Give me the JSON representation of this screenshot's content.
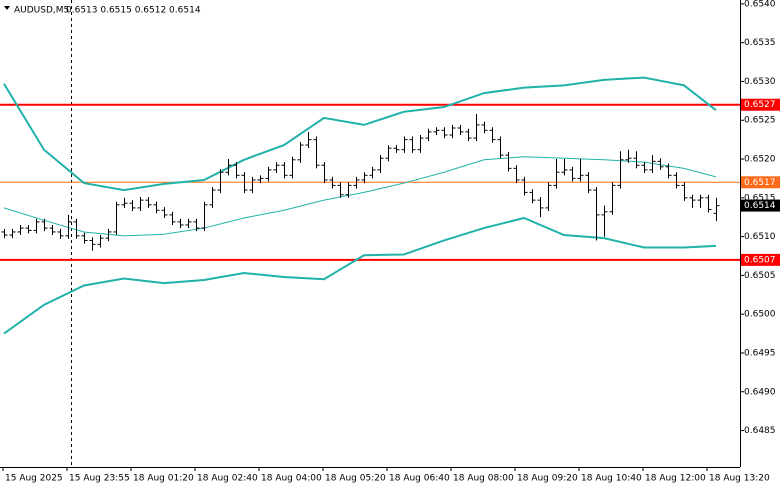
{
  "chart_data": {
    "type": "ohlc",
    "title": "AUDUSD,M5",
    "header_values": "0.6513 0.6515 0.6512 0.6514",
    "categories": [
      "15 Aug 2025",
      null,
      null,
      null,
      null,
      null,
      null,
      null,
      "15 Aug 23:55",
      null,
      null,
      null,
      null,
      null,
      null,
      null,
      "18 Aug 01:20",
      null,
      null,
      null,
      null,
      null,
      null,
      null,
      "18 Aug 02:40",
      null,
      null,
      null,
      null,
      null,
      null,
      null,
      "18 Aug 04:00",
      null,
      null,
      null,
      null,
      null,
      null,
      null,
      "18 Aug 05:20",
      null,
      null,
      null,
      null,
      null,
      null,
      null,
      "18 Aug 06:40",
      null,
      null,
      null,
      null,
      null,
      null,
      null,
      "18 Aug 08:00",
      null,
      null,
      null,
      null,
      null,
      null,
      null,
      "18 Aug 09:20",
      null,
      null,
      null,
      null,
      null,
      null,
      null,
      "18 Aug 10:40",
      null,
      null,
      null,
      null,
      null,
      null,
      null,
      "18 Aug 12:00",
      null,
      null,
      null,
      null,
      null,
      null,
      null,
      "18 Aug 13:20",
      null
    ],
    "open": [
      0.65106,
      0.65102,
      0.65106,
      0.65111,
      0.65108,
      0.65119,
      0.65111,
      0.65106,
      0.65101,
      0.65119,
      0.65101,
      0.65095,
      0.6509,
      0.65098,
      0.65106,
      0.65141,
      0.65143,
      0.65137,
      0.65147,
      0.65141,
      0.65134,
      0.65128,
      0.65119,
      0.65115,
      0.65119,
      0.65111,
      0.65141,
      0.6516,
      0.65183,
      0.65192,
      0.65179,
      0.6516,
      0.65173,
      0.65175,
      0.65186,
      0.65192,
      0.65179,
      0.65199,
      0.65218,
      0.65225,
      0.65192,
      0.65173,
      0.65166,
      0.65154,
      0.65166,
      0.65173,
      0.65179,
      0.65186,
      0.65201,
      0.65214,
      0.65212,
      0.65225,
      0.65212,
      0.65227,
      0.65235,
      0.65237,
      0.65231,
      0.6524,
      0.65235,
      0.65227,
      0.65244,
      0.65237,
      0.65225,
      0.65205,
      0.65188,
      0.65173,
      0.65157,
      0.65147,
      0.65137,
      0.65166,
      0.65183,
      0.65186,
      0.65175,
      0.65179,
      0.6516,
      0.65128,
      0.65132,
      0.65166,
      0.65199,
      0.65201,
      0.65192,
      0.65186,
      0.65197,
      0.6519,
      0.65179,
      0.65166,
      0.6515,
      0.65147,
      0.6515,
      0.6513
    ],
    "high": [
      0.6511,
      0.6511,
      0.65115,
      0.65115,
      0.65123,
      0.65123,
      0.65115,
      0.6511,
      0.65128,
      0.65123,
      0.65105,
      0.65099,
      0.65102,
      0.6511,
      0.65145,
      0.6515,
      0.65147,
      0.65151,
      0.65151,
      0.65145,
      0.65138,
      0.65132,
      0.65123,
      0.65123,
      0.65123,
      0.65145,
      0.65164,
      0.65187,
      0.652,
      0.65196,
      0.65183,
      0.65177,
      0.65179,
      0.6519,
      0.65196,
      0.65196,
      0.65203,
      0.65222,
      0.65235,
      0.65229,
      0.65196,
      0.65177,
      0.6517,
      0.6517,
      0.65177,
      0.65183,
      0.6519,
      0.65205,
      0.65218,
      0.65218,
      0.65229,
      0.65229,
      0.65231,
      0.65239,
      0.65241,
      0.65241,
      0.65244,
      0.65244,
      0.65239,
      0.65258,
      0.65248,
      0.65241,
      0.65229,
      0.65209,
      0.65192,
      0.65177,
      0.65161,
      0.65151,
      0.6517,
      0.652,
      0.652,
      0.6519,
      0.652,
      0.65183,
      0.65164,
      0.6514,
      0.6517,
      0.6521,
      0.65212,
      0.6521,
      0.65196,
      0.65205,
      0.65201,
      0.65194,
      0.65183,
      0.6517,
      0.65154,
      0.65154,
      0.65154,
      0.6515
    ],
    "low": [
      0.65098,
      0.65098,
      0.65102,
      0.65104,
      0.65104,
      0.65107,
      0.65102,
      0.65097,
      0.65097,
      0.65097,
      0.65091,
      0.65082,
      0.65086,
      0.65094,
      0.65102,
      0.65137,
      0.65133,
      0.65133,
      0.65137,
      0.6513,
      0.65124,
      0.65115,
      0.65111,
      0.65111,
      0.65107,
      0.65107,
      0.65137,
      0.65156,
      0.65179,
      0.65175,
      0.65156,
      0.65156,
      0.65169,
      0.65171,
      0.65182,
      0.65175,
      0.65175,
      0.65195,
      0.65214,
      0.65188,
      0.65169,
      0.65162,
      0.6515,
      0.6515,
      0.65162,
      0.65169,
      0.65175,
      0.65182,
      0.65197,
      0.65208,
      0.65208,
      0.65208,
      0.65208,
      0.65223,
      0.65231,
      0.65227,
      0.65227,
      0.65231,
      0.65223,
      0.65223,
      0.65233,
      0.65221,
      0.65201,
      0.65184,
      0.65169,
      0.65153,
      0.65143,
      0.65125,
      0.65133,
      0.65162,
      0.65179,
      0.65171,
      0.65171,
      0.65156,
      0.65095,
      0.651,
      0.65128,
      0.65162,
      0.65195,
      0.65188,
      0.65182,
      0.65182,
      0.65186,
      0.65175,
      0.65162,
      0.65146,
      0.65137,
      0.65137,
      0.65131,
      0.6512
    ],
    "close": [
      0.65102,
      0.65106,
      0.65111,
      0.65108,
      0.65119,
      0.65111,
      0.65106,
      0.65101,
      0.65119,
      0.65101,
      0.65095,
      0.6509,
      0.65098,
      0.65106,
      0.65141,
      0.65143,
      0.65137,
      0.65147,
      0.65141,
      0.65134,
      0.65128,
      0.65119,
      0.65115,
      0.65119,
      0.65111,
      0.65141,
      0.6516,
      0.65183,
      0.65192,
      0.65179,
      0.6516,
      0.65173,
      0.65175,
      0.65186,
      0.65192,
      0.65179,
      0.65199,
      0.65218,
      0.65225,
      0.65192,
      0.65173,
      0.65166,
      0.65154,
      0.65166,
      0.65173,
      0.65179,
      0.65186,
      0.65201,
      0.65214,
      0.65212,
      0.65225,
      0.65212,
      0.65227,
      0.65235,
      0.65237,
      0.65231,
      0.6524,
      0.65235,
      0.65227,
      0.65244,
      0.65237,
      0.65225,
      0.65205,
      0.65188,
      0.65173,
      0.65157,
      0.65147,
      0.65137,
      0.65166,
      0.65183,
      0.65186,
      0.65175,
      0.65179,
      0.6516,
      0.65128,
      0.65132,
      0.65166,
      0.65199,
      0.65201,
      0.65192,
      0.65186,
      0.65197,
      0.6519,
      0.65179,
      0.65166,
      0.6515,
      0.65147,
      0.6515,
      0.65135,
      0.6514
    ],
    "bar_color": "#000000",
    "bands": [
      {
        "color": "#20b2aa",
        "x": [
          0,
          5,
          10,
          15,
          20,
          25,
          30,
          35,
          40,
          45,
          50,
          55,
          60,
          65,
          70,
          75,
          80,
          85,
          89
        ],
        "values": [
          0.65297,
          0.65212,
          0.65169,
          0.6516,
          0.65168,
          0.65173,
          0.65199,
          0.65218,
          0.65253,
          0.65244,
          0.65261,
          0.65267,
          0.65285,
          0.65292,
          0.65295,
          0.65302,
          0.65305,
          0.65295,
          0.65263
        ]
      },
      {
        "color": "#20b2aa",
        "x": [
          0,
          5,
          10,
          15,
          20,
          25,
          30,
          35,
          40,
          45,
          50,
          55,
          60,
          65,
          70,
          75,
          80,
          85,
          89
        ],
        "values": [
          0.65137,
          0.65121,
          0.65106,
          0.65101,
          0.65103,
          0.65111,
          0.65124,
          0.65134,
          0.65147,
          0.65157,
          0.65169,
          0.65183,
          0.65199,
          0.65203,
          0.65201,
          0.65199,
          0.65196,
          0.65188,
          0.65177
        ]
      },
      {
        "color": "#20b2aa",
        "x": [
          0,
          5,
          10,
          15,
          20,
          25,
          30,
          35,
          40,
          45,
          50,
          55,
          60,
          65,
          70,
          75,
          80,
          85,
          89
        ],
        "values": [
          0.64975,
          0.65012,
          0.65037,
          0.65046,
          0.6504,
          0.65044,
          0.65053,
          0.65048,
          0.65045,
          0.65076,
          0.65077,
          0.65095,
          0.65111,
          0.65124,
          0.65102,
          0.65098,
          0.65086,
          0.65086,
          0.65088
        ]
      }
    ],
    "levels": [
      {
        "value": 0.6527,
        "color": "#ff0000"
      },
      {
        "value": 0.6517,
        "color": "#ff6a1a"
      },
      {
        "value": 0.6507,
        "color": "#ff0000"
      }
    ],
    "last_price": 0.6514,
    "ylim": [
      0.64803,
      0.65405
    ],
    "yticks": [
      {
        "value": 0.654,
        "label": "0.6540"
      },
      0.6535,
      {
        "value": 0.653,
        "label": "0.6530"
      },
      0.6525,
      {
        "value": 0.652,
        "label": "0.6520"
      },
      0.6515,
      {
        "value": 0.651,
        "label": "0.6510"
      },
      0.6505,
      {
        "value": 0.65,
        "label": "0.6500"
      },
      0.6495,
      {
        "value": 0.649,
        "label": "0.6490"
      },
      0.6485
    ],
    "grid": false
  }
}
